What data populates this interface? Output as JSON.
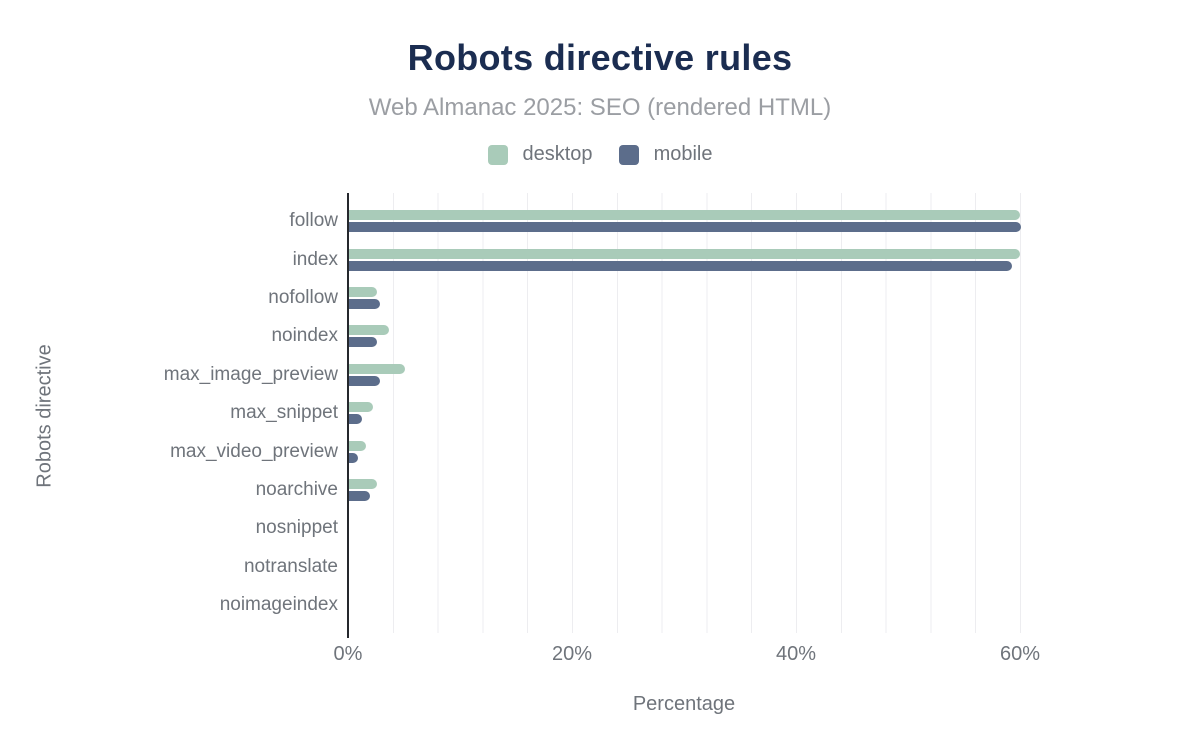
{
  "header": {
    "title": "Robots directive rules",
    "subtitle": "Web Almanac 2025: SEO (rendered HTML)"
  },
  "legend": {
    "items": [
      {
        "label": "desktop",
        "color": "#a9cbb9"
      },
      {
        "label": "mobile",
        "color": "#5c6d8b"
      }
    ]
  },
  "axes": {
    "x_title": "Percentage",
    "y_title": "Robots directive",
    "x_ticks": [
      "0%",
      "20%",
      "40%",
      "60%"
    ]
  },
  "colors": {
    "title_text": "#1b2d51",
    "subtitle_text": "#9b9ea3",
    "axis_text": "#6f747b",
    "axis_line": "#25282d",
    "gridline": "#ededf0",
    "background": "#ffffff",
    "desktop_bar": "#a9cbb9",
    "mobile_bar": "#5c6d8b"
  },
  "chart_data": {
    "type": "bar",
    "orientation": "horizontal",
    "title": "Robots directive rules",
    "subtitle": "Web Almanac 2025: SEO (rendered HTML)",
    "xlabel": "Percentage",
    "ylabel": "Robots directive",
    "xlim": [
      0,
      60
    ],
    "x_tick_step": 20,
    "gridline_step": 4,
    "grid": true,
    "legend_position": "top",
    "categories": [
      "follow",
      "index",
      "nofollow",
      "noindex",
      "max_image_preview",
      "max_snippet",
      "max_video_preview",
      "noarchive",
      "nosnippet",
      "notranslate",
      "noimageindex"
    ],
    "series": [
      {
        "name": "desktop",
        "color": "#a9cbb9",
        "values": [
          59.9,
          59.9,
          2.5,
          3.6,
          5.0,
          2.1,
          1.5,
          2.5,
          0,
          0,
          0
        ]
      },
      {
        "name": "mobile",
        "color": "#5c6d8b",
        "values": [
          60.0,
          59.2,
          2.8,
          2.5,
          2.8,
          1.2,
          0.8,
          1.9,
          0,
          0,
          0
        ]
      }
    ]
  }
}
